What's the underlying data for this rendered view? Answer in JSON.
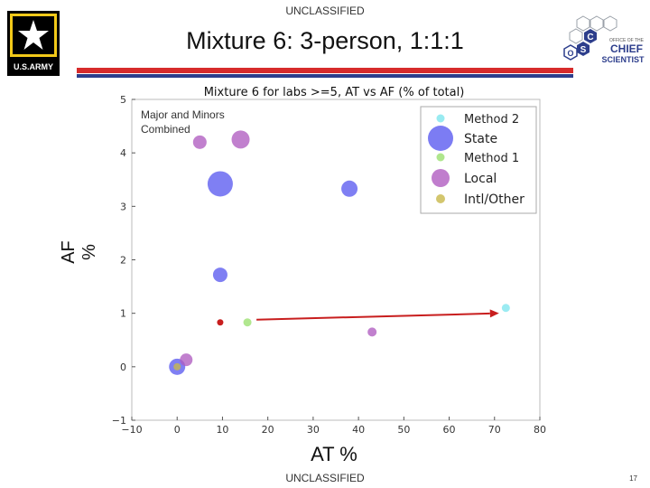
{
  "header": {
    "classification_top": "UNCLASSIFIED",
    "title": "Mixture 6:  3-person, 1:1:1",
    "army_logo_text": "U.S.ARMY",
    "chief_logo_lines": [
      "OFFICE OF THE",
      "CHIEF",
      "SCIENTIST"
    ]
  },
  "footer": {
    "classification_bottom": "UNCLASSIFIED",
    "page_number": "17"
  },
  "colors": {
    "red_bar": "#d72b2b",
    "blue_bar": "#2d3e8c",
    "state": "#5b5bf0",
    "local": "#b05cc0",
    "intl_other": "#c8b84a",
    "method1": "#9be070",
    "method2": "#7fe6ee",
    "arrow": "#c81e1e"
  },
  "chart_data": {
    "type": "scatter",
    "title": "Mixture 6 for labs >=5, AT vs AF (% of total)",
    "xlabel": "AT %",
    "ylabel": "AF %",
    "xlim": [
      -10,
      80
    ],
    "ylim": [
      -1,
      5
    ],
    "xticks": [
      "-10",
      "0",
      "10",
      "20",
      "30",
      "40",
      "50",
      "60",
      "70",
      "80"
    ],
    "yticks": [
      "-1",
      "0",
      "1",
      "2",
      "3",
      "4",
      "5"
    ],
    "annotation": [
      "Major and Minors",
      "Combined"
    ],
    "legend_position": "top-right",
    "legend": [
      "Method 2",
      "State",
      "Method 1",
      "Local",
      "Intl/Other"
    ],
    "series": [
      {
        "name": "State",
        "color": "#5b5bf0",
        "points": [
          {
            "x": 9.5,
            "y": 3.42,
            "s": 14
          },
          {
            "x": 38,
            "y": 3.33,
            "s": 9
          },
          {
            "x": 9.5,
            "y": 1.72,
            "s": 8
          },
          {
            "x": 0,
            "y": 0,
            "s": 9
          }
        ]
      },
      {
        "name": "Local",
        "color": "#b05cc0",
        "points": [
          {
            "x": 5,
            "y": 4.2,
            "s": 7.5
          },
          {
            "x": 14,
            "y": 4.25,
            "s": 10
          },
          {
            "x": 2,
            "y": 0.13,
            "s": 7
          },
          {
            "x": 43,
            "y": 0.65,
            "s": 5
          }
        ]
      },
      {
        "name": "Intl/Other",
        "color": "#c8b84a",
        "points": [
          {
            "x": 0,
            "y": 0,
            "s": 4
          }
        ]
      },
      {
        "name": "Method 1",
        "color": "#9be070",
        "points": [
          {
            "x": 15.5,
            "y": 0.83,
            "s": 4.5
          }
        ]
      },
      {
        "name": "Method 2",
        "color": "#7fe6ee",
        "points": [
          {
            "x": 72.5,
            "y": 1.1,
            "s": 4.5
          }
        ]
      }
    ],
    "extra_points": [
      {
        "x": 9.5,
        "y": 0.83,
        "color": "#c81e1e",
        "s": 3.5
      }
    ],
    "arrow": {
      "from": [
        17.5,
        0.88
      ],
      "to": [
        71,
        1.0
      ]
    }
  }
}
